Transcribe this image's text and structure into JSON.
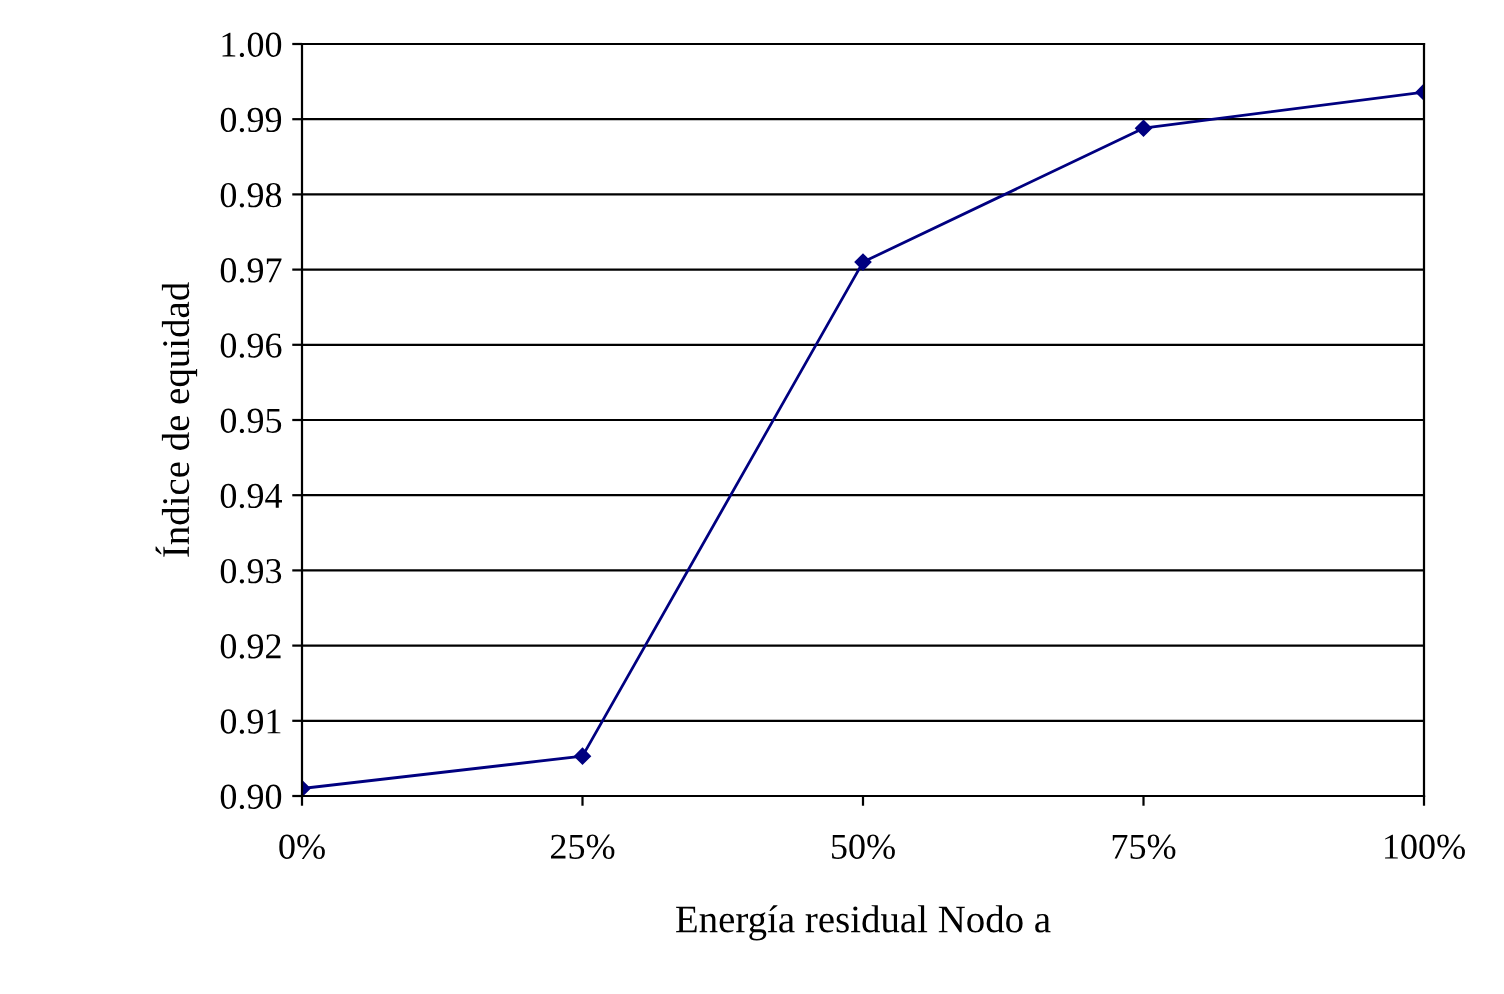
{
  "chart_data": {
    "type": "line",
    "xlabel": "Energía residual Nodo a",
    "ylabel": "Índice de equidad",
    "categories": [
      "0%",
      "25%",
      "50%",
      "75%",
      "100%"
    ],
    "series": [
      {
        "color": "#000080",
        "values": [
          0.901,
          0.9053,
          0.971,
          0.9888,
          0.9936
        ]
      }
    ],
    "ylim": [
      0.9,
      1.0
    ],
    "yticks": [
      {
        "value": 0.9,
        "label": "0.90"
      },
      0.91,
      0.92,
      0.93,
      0.94,
      0.95,
      0.96,
      0.97,
      0.98,
      0.99,
      {
        "value": 1.0,
        "label": "1.00"
      }
    ],
    "grid": "y",
    "marker": "diamond",
    "line_style": "solid"
  }
}
